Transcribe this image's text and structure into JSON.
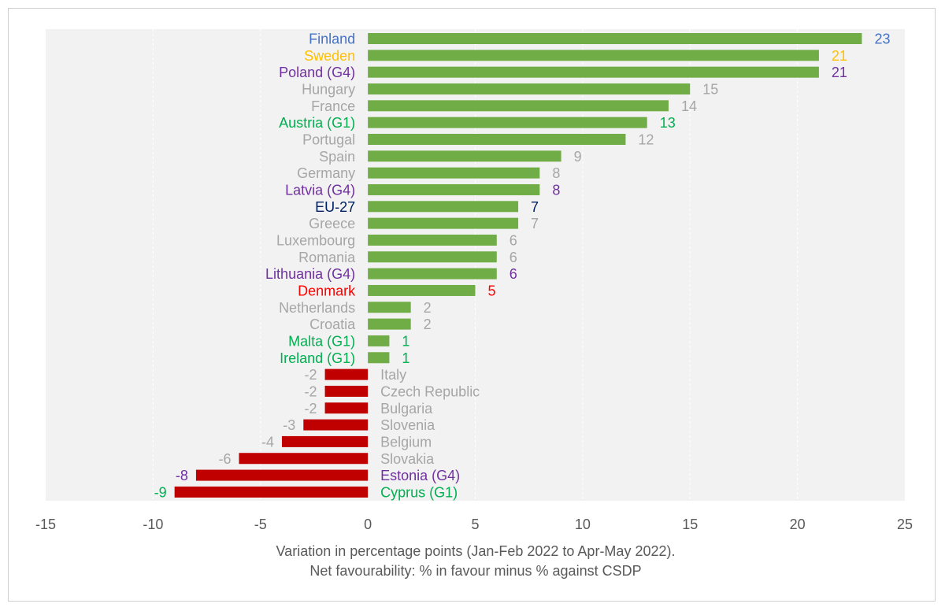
{
  "chart_data": {
    "type": "bar",
    "orientation": "horizontal",
    "xlabel_lines": [
      "Variation in percentage points (Jan-Feb 2022 to Apr-May 2022).",
      "Net favourability: % in favour minus % against CSDP"
    ],
    "xlim": [
      -15,
      25
    ],
    "xticks": [
      -15,
      -10,
      -5,
      0,
      5,
      10,
      15,
      20,
      25
    ],
    "grid": "vertical-dashed",
    "colors": {
      "positive_bar": "#70ad47",
      "negative_bar": "#c00000",
      "plot_background": "#f2f2f2",
      "axis_text": "#595959"
    },
    "bars": [
      {
        "label": "Finland",
        "value": 23,
        "color": "#4472c4"
      },
      {
        "label": "Sweden",
        "value": 21,
        "color": "#ffc000"
      },
      {
        "label": "Poland (G4)",
        "value": 21,
        "color": "#7030a0"
      },
      {
        "label": "Hungary",
        "value": 15,
        "color": "#a6a6a6"
      },
      {
        "label": "France",
        "value": 14,
        "color": "#a6a6a6"
      },
      {
        "label": "Austria (G1)",
        "value": 13,
        "color": "#00b050"
      },
      {
        "label": "Portugal",
        "value": 12,
        "color": "#a6a6a6"
      },
      {
        "label": "Spain",
        "value": 9,
        "color": "#a6a6a6"
      },
      {
        "label": "Germany",
        "value": 8,
        "color": "#a6a6a6"
      },
      {
        "label": "Latvia (G4)",
        "value": 8,
        "color": "#7030a0"
      },
      {
        "label": "EU-27",
        "value": 7,
        "color": "#002060"
      },
      {
        "label": "Greece",
        "value": 7,
        "color": "#a6a6a6"
      },
      {
        "label": "Luxembourg",
        "value": 6,
        "color": "#a6a6a6"
      },
      {
        "label": "Romania",
        "value": 6,
        "color": "#a6a6a6"
      },
      {
        "label": "Lithuania (G4)",
        "value": 6,
        "color": "#7030a0"
      },
      {
        "label": "Denmark",
        "value": 5,
        "color": "#ff0000"
      },
      {
        "label": "Netherlands",
        "value": 2,
        "color": "#a6a6a6"
      },
      {
        "label": "Croatia",
        "value": 2,
        "color": "#a6a6a6"
      },
      {
        "label": "Malta (G1)",
        "value": 1,
        "color": "#00b050"
      },
      {
        "label": "Ireland (G1)",
        "value": 1,
        "color": "#00b050"
      },
      {
        "label": "Italy",
        "value": -2,
        "color": "#a6a6a6"
      },
      {
        "label": "Czech Republic",
        "value": -2,
        "color": "#a6a6a6"
      },
      {
        "label": "Bulgaria",
        "value": -2,
        "color": "#a6a6a6"
      },
      {
        "label": "Slovenia",
        "value": -3,
        "color": "#a6a6a6"
      },
      {
        "label": "Belgium",
        "value": -4,
        "color": "#a6a6a6"
      },
      {
        "label": "Slovakia",
        "value": -6,
        "color": "#a6a6a6"
      },
      {
        "label": "Estonia (G4)",
        "value": -8,
        "color": "#7030a0"
      },
      {
        "label": "Cyprus (G1)",
        "value": -9,
        "color": "#00b050"
      }
    ]
  }
}
